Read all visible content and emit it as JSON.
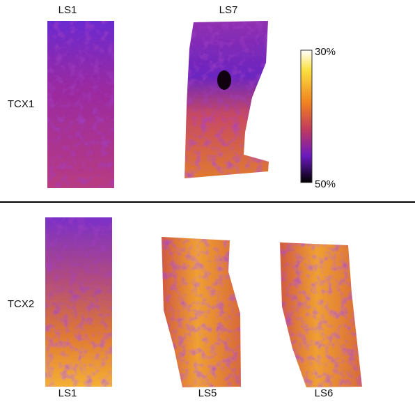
{
  "top_row": {
    "row_label": "TCX1",
    "column_labels": [
      "LS1",
      "LS7"
    ]
  },
  "colorbar": {
    "top_label": "30%",
    "bottom_label": "50%"
  },
  "bottom_row": {
    "row_label": "TCX2",
    "column_labels": [
      "LS1",
      "LS5",
      "LS6"
    ]
  }
}
